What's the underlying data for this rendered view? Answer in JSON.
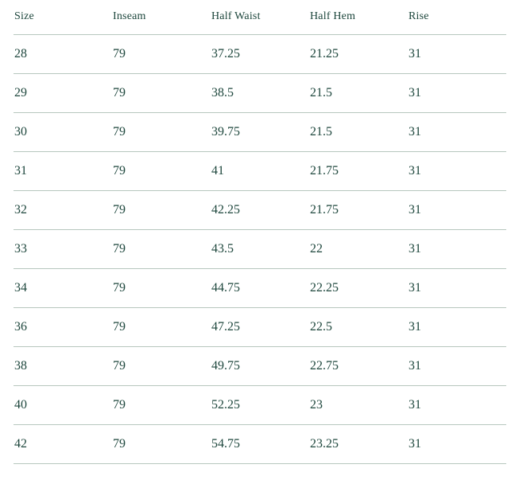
{
  "colors": {
    "text": "#1e473d",
    "divider": "#b7c7be",
    "background": "#ffffff"
  },
  "chart_data": {
    "type": "table",
    "title": "",
    "columns": [
      "Size",
      "Inseam",
      "Half Waist",
      "Half Hem",
      "Rise"
    ],
    "rows": [
      [
        "28",
        "79",
        "37.25",
        "21.25",
        "31"
      ],
      [
        "29",
        "79",
        "38.5",
        "21.5",
        "31"
      ],
      [
        "30",
        "79",
        "39.75",
        "21.5",
        "31"
      ],
      [
        "31",
        "79",
        "41",
        "21.75",
        "31"
      ],
      [
        "32",
        "79",
        "42.25",
        "21.75",
        "31"
      ],
      [
        "33",
        "79",
        "43.5",
        "22",
        "31"
      ],
      [
        "34",
        "79",
        "44.75",
        "22.25",
        "31"
      ],
      [
        "36",
        "79",
        "47.25",
        "22.5",
        "31"
      ],
      [
        "38",
        "79",
        "49.75",
        "22.75",
        "31"
      ],
      [
        "40",
        "79",
        "52.25",
        "23",
        "31"
      ],
      [
        "42",
        "79",
        "54.75",
        "23.25",
        "31"
      ]
    ]
  }
}
